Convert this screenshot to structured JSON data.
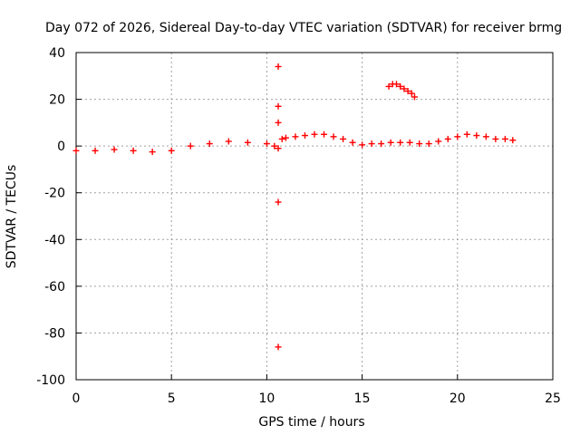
{
  "chart_data": {
    "type": "scatter",
    "title": "Day 072 of 2026, Sidereal Day-to-day VTEC variation (SDTVAR) for receiver brmg",
    "xlabel": "GPS time / hours",
    "ylabel": "SDTVAR / TECUs",
    "xlim": [
      0,
      25
    ],
    "ylim": [
      -100,
      40
    ],
    "x_ticks": [
      0,
      5,
      10,
      15,
      20,
      25
    ],
    "y_ticks": [
      -100,
      -80,
      -60,
      -40,
      -20,
      0,
      20,
      40
    ],
    "x_tick_labels": [
      "0",
      "5",
      "10",
      "15",
      "20",
      "25"
    ],
    "y_tick_labels": [
      "-100",
      "-80",
      "-60",
      "-40",
      "-20",
      "0",
      "20",
      "40"
    ],
    "grid": true,
    "legend": "",
    "marker": "plus",
    "color": "#ff0000",
    "series": [
      {
        "name": "main-trace",
        "x": [
          0.0,
          1.0,
          2.0,
          3.0,
          4.0,
          5.0,
          6.0,
          7.0,
          8.0,
          9.0,
          10.0,
          10.4,
          10.6,
          10.8,
          11.0,
          11.5,
          12.0,
          12.5,
          13.0,
          13.5,
          14.0,
          14.5,
          15.0,
          15.5,
          16.0,
          16.5,
          17.0,
          17.5,
          18.0,
          18.5,
          19.0,
          19.5,
          20.0,
          20.5,
          21.0,
          21.5,
          22.0,
          22.5,
          22.9
        ],
        "y": [
          -2,
          -2,
          -1.5,
          -2,
          -2.5,
          -2,
          0,
          1,
          2,
          1.5,
          1,
          0,
          -1,
          3,
          3.5,
          4,
          4.5,
          5,
          5,
          4,
          3,
          1.5,
          0.5,
          1,
          1,
          1.5,
          1.5,
          1.5,
          1,
          1,
          2,
          3,
          4,
          5,
          4.5,
          4,
          3,
          3,
          2.5
        ]
      },
      {
        "name": "arc",
        "x": [
          16.4,
          16.6,
          16.8,
          17.0,
          17.2,
          17.4,
          17.6,
          17.75
        ],
        "y": [
          25.5,
          26.5,
          26.5,
          25.5,
          24.5,
          23.5,
          22.5,
          21
        ]
      },
      {
        "name": "outliers",
        "x": [
          10.6,
          10.6,
          10.6,
          10.6,
          10.6
        ],
        "y": [
          34,
          17,
          10,
          -24,
          -86
        ]
      }
    ]
  }
}
